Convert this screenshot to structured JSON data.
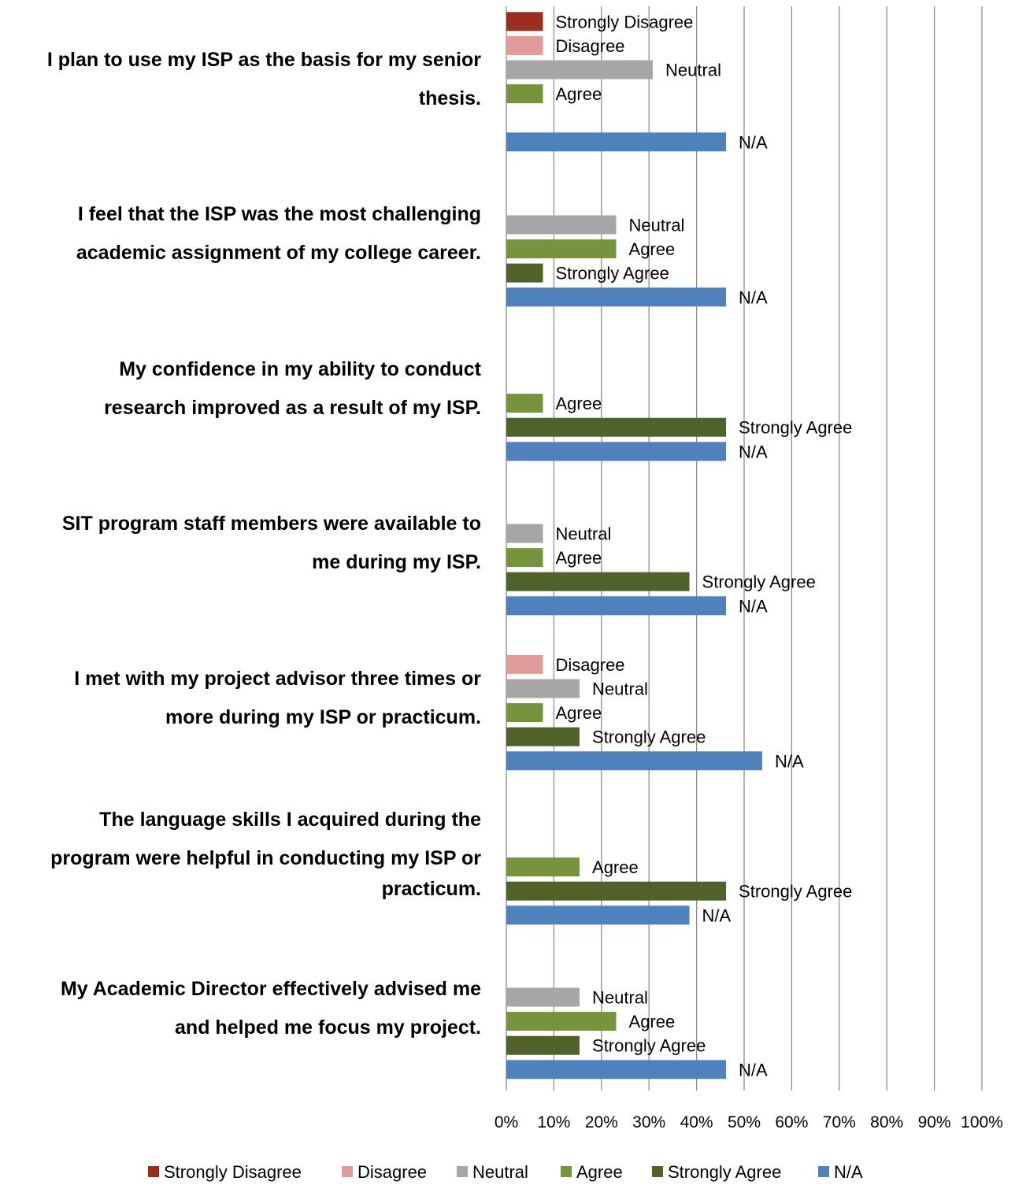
{
  "colors": {
    "Strongly Disagree": "#9b2d1f",
    "Disagree": "#e19b9b",
    "Neutral": "#a6a6a6",
    "Agree": "#77933c",
    "Strongly Agree": "#4f6228",
    "N/A": "#4f81bd"
  },
  "chart_data": {
    "type": "bar",
    "orientation": "horizontal",
    "xlim": [
      0,
      100
    ],
    "x_unit": "%",
    "x_ticks": [
      "0%",
      "10%",
      "20%",
      "30%",
      "40%",
      "50%",
      "60%",
      "70%",
      "80%",
      "90%",
      "100%"
    ],
    "grid": true,
    "legend_position": "bottom",
    "legend": [
      "Strongly Disagree",
      "Disagree",
      "Neutral",
      "Agree",
      "Strongly Agree",
      "N/A"
    ],
    "categories": [
      "I plan to use my ISP as the basis for my senior thesis.",
      "I feel that the ISP was the most challenging academic assignment of my college career.",
      "My confidence in my ability to conduct research improved as a result of my ISP.",
      "SIT program staff members were available to me during my ISP.",
      "I met with my project advisor three times or more during my ISP or practicum.",
      "The language skills I acquired during the program were helpful in conducting my ISP or practicum.",
      "My Academic Director effectively advised me and helped me focus my project."
    ],
    "category_lines": [
      [
        "I plan to use my ISP as the basis for my senior",
        "thesis."
      ],
      [
        "I feel that the ISP was the most challenging",
        "academic assignment of my college career."
      ],
      [
        "My confidence in my ability to conduct",
        "research improved as a result of my ISP."
      ],
      [
        "SIT program staff members were available to",
        "me during my ISP."
      ],
      [
        "I met with my project advisor three times or",
        "more during my ISP or practicum."
      ],
      [
        "The language skills I acquired during the",
        "program were helpful in conducting my ISP or",
        "practicum."
      ],
      [
        "My Academic Director effectively advised me",
        "and helped me focus my project."
      ]
    ],
    "series": [
      {
        "name": "Strongly Disagree",
        "values": [
          7.7,
          0,
          0,
          0,
          0,
          0,
          0
        ]
      },
      {
        "name": "Disagree",
        "values": [
          7.7,
          0,
          0,
          0,
          7.7,
          0,
          0
        ]
      },
      {
        "name": "Neutral",
        "values": [
          30.8,
          23.1,
          0,
          7.7,
          15.4,
          0,
          15.4
        ]
      },
      {
        "name": "Agree",
        "values": [
          7.7,
          23.1,
          7.7,
          7.7,
          7.7,
          15.4,
          23.1
        ]
      },
      {
        "name": "Strongly Agree",
        "values": [
          0,
          7.7,
          46.2,
          38.5,
          15.4,
          46.2,
          15.4
        ]
      },
      {
        "name": "N/A",
        "values": [
          46.2,
          46.2,
          46.2,
          46.2,
          53.8,
          38.5,
          46.2
        ]
      }
    ]
  }
}
